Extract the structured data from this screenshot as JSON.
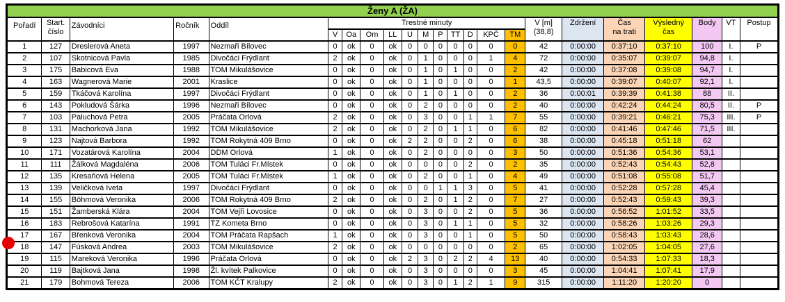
{
  "title": "Ženy A (ŽA)",
  "header": {
    "poradi": "Pořadí",
    "start_line1": "Start.",
    "start_line2": "číslo",
    "zavodnici": "Závodníci",
    "rocnik": "Ročník",
    "oddil": "Oddíl",
    "trestne_minuty": "Trestné minuty",
    "penalty_cols": [
      "V",
      "Oa",
      "Om",
      "LL",
      "U",
      "M",
      "P",
      "TT",
      "D",
      "KPČ",
      "TM"
    ],
    "vm_line1": "V [m]",
    "vm_line2": "(38,8)",
    "zdrzeni": "Zdržení",
    "cas_line1": "Čas",
    "cas_line2": "na trati",
    "vysledny_line1": "Výsledný",
    "vysledny_line2": "čas",
    "body": "Body",
    "vt": "VT",
    "postup": "Postup"
  },
  "rows": [
    [
      "1",
      "127",
      "Dreslerová Aneta",
      "1997",
      "Nezmaři Bílovec",
      "0",
      "ok",
      "0",
      "ok",
      "0",
      "0",
      "0",
      "0",
      "0",
      "0",
      "0",
      "42",
      "0:00:00",
      "0:37:10",
      "0:37:10",
      "100",
      "I.",
      "P"
    ],
    [
      "2",
      "107",
      "Skotnicová Pavla",
      "1985",
      "Divočáci Frýdlant",
      "2",
      "ok",
      "0",
      "ok",
      "0",
      "1",
      "0",
      "0",
      "0",
      "1",
      "4",
      "72",
      "0:00:00",
      "0:35:07",
      "0:39:07",
      "94,8",
      "I.",
      ""
    ],
    [
      "3",
      "175",
      "Babicová Eva",
      "1988",
      "TOM Mikulášovice",
      "0",
      "ok",
      "0",
      "ok",
      "0",
      "1",
      "0",
      "1",
      "0",
      "0",
      "2",
      "42",
      "0:00:00",
      "0:37:08",
      "0:39:08",
      "94,7",
      "I.",
      ""
    ],
    [
      "4",
      "163",
      "Wagnerová Marie",
      "2001",
      "Kraslice",
      "0",
      "ok",
      "0",
      "ok",
      "0",
      "1",
      "0",
      "0",
      "0",
      "0",
      "1",
      "43,5",
      "0:00:00",
      "0:39:07",
      "0:40:07",
      "92,1",
      "I.",
      ""
    ],
    [
      "5",
      "159",
      "Tkáčová Karolína",
      "1997",
      "Divočáci Frýdlant",
      "0",
      "ok",
      "0",
      "ok",
      "0",
      "1",
      "0",
      "1",
      "0",
      "0",
      "2",
      "36",
      "0:00:01",
      "0:39:39",
      "0:41:38",
      "88",
      "II.",
      ""
    ],
    [
      "6",
      "143",
      "Pokludová Šárka",
      "1996",
      "Nezmaři Bílovec",
      "0",
      "ok",
      "0",
      "ok",
      "0",
      "2",
      "0",
      "0",
      "0",
      "0",
      "2",
      "40",
      "0:00:00",
      "0:42:24",
      "0:44:24",
      "80,5",
      "II.",
      "P"
    ],
    [
      "7",
      "103",
      "Paluchová Petra",
      "2005",
      "Práčata Orlová",
      "2",
      "ok",
      "0",
      "ok",
      "0",
      "3",
      "0",
      "0",
      "1",
      "1",
      "7",
      "55",
      "0:00:00",
      "0:39:21",
      "0:46:21",
      "75,3",
      "III.",
      "P"
    ],
    [
      "8",
      "131",
      "Machorková Jana",
      "1992",
      "TOM Mikulášovice",
      "2",
      "ok",
      "0",
      "ok",
      "0",
      "2",
      "0",
      "1",
      "1",
      "0",
      "6",
      "82",
      "0:00:00",
      "0:41:46",
      "0:47:46",
      "71,5",
      "III.",
      ""
    ],
    [
      "9",
      "123",
      "Najtová Barbora",
      "1992",
      "TOM Rokytná 409 Brno",
      "0",
      "ok",
      "0",
      "ok",
      "2",
      "2",
      "0",
      "0",
      "2",
      "0",
      "6",
      "38",
      "0:00:00",
      "0:45:18",
      "0:51:18",
      "62",
      "",
      ""
    ],
    [
      "10",
      "171",
      "Vozatárová Karolína",
      "2004",
      "DDM Orlová",
      "1",
      "ok",
      "0",
      "ok",
      "0",
      "2",
      "0",
      "0",
      "0",
      "0",
      "3",
      "50",
      "0:00:00",
      "0:51:36",
      "0:54:36",
      "53,1",
      "",
      ""
    ],
    [
      "11",
      "111",
      "Žálková Magdaléna",
      "2006",
      "TOM Tuláci Fr.Místek",
      "0",
      "ok",
      "0",
      "ok",
      "0",
      "0",
      "0",
      "0",
      "2",
      "0",
      "2",
      "35",
      "0:00:00",
      "0:52:43",
      "0:54:43",
      "52,8",
      "",
      ""
    ],
    [
      "12",
      "135",
      "Kresaňová Helena",
      "2005",
      "TOM Tuláci Fr.Místek",
      "1",
      "ok",
      "0",
      "ok",
      "0",
      "2",
      "0",
      "0",
      "1",
      "0",
      "4",
      "49",
      "0:00:00",
      "0:51:08",
      "0:55:08",
      "51,7",
      "",
      ""
    ],
    [
      "13",
      "139",
      "Veličková Iveta",
      "1997",
      "Divočáci Frýdlant",
      "0",
      "ok",
      "0",
      "ok",
      "0",
      "0",
      "1",
      "1",
      "3",
      "0",
      "5",
      "41",
      "0:00:00",
      "0:52:28",
      "0:57:28",
      "45,4",
      "",
      ""
    ],
    [
      "14",
      "155",
      "Böhmová Veronika",
      "2006",
      "TOM Rokytná 409 Brno",
      "2",
      "ok",
      "0",
      "ok",
      "0",
      "2",
      "0",
      "1",
      "2",
      "0",
      "7",
      "27",
      "0:00:00",
      "0:52:43",
      "0:59:43",
      "39,3",
      "",
      ""
    ],
    [
      "15",
      "151",
      "Žamberská Klára",
      "2004",
      "TOM Vejři Lovosice",
      "0",
      "ok",
      "0",
      "ok",
      "0",
      "3",
      "0",
      "0",
      "2",
      "0",
      "5",
      "36",
      "0:00:00",
      "0:56:52",
      "1:01:52",
      "33,5",
      "",
      ""
    ],
    [
      "16",
      "183",
      "Rebrošová Katarína",
      "1991",
      "TZ Kometa Brno",
      "0",
      "ok",
      "0",
      "ok",
      "0",
      "3",
      "0",
      "1",
      "1",
      "0",
      "5",
      "32",
      "0:00:00",
      "0:58:26",
      "1:03:26",
      "29,3",
      "",
      ""
    ],
    [
      "17",
      "167",
      "Břenková Veronika",
      "2004",
      "TOM Práčata Rapšach",
      "1",
      "ok",
      "0",
      "ok",
      "0",
      "3",
      "0",
      "0",
      "1",
      "0",
      "5",
      "50",
      "0:00:00",
      "0:58:43",
      "1:03:43",
      "28,6",
      "",
      ""
    ],
    [
      "18",
      "147",
      "Fúsková Andrea",
      "2003",
      "TOM Mikulášovice",
      "2",
      "ok",
      "0",
      "ok",
      "0",
      "0",
      "0",
      "0",
      "0",
      "0",
      "2",
      "65",
      "0:00:00",
      "1:02:05",
      "1:04:05",
      "27,6",
      "",
      ""
    ],
    [
      "19",
      "115",
      "Mareková Veronika",
      "1996",
      "Práčata Orlová",
      "0",
      "ok",
      "0",
      "ok",
      "2",
      "3",
      "0",
      "2",
      "2",
      "4",
      "13",
      "40",
      "0:00:00",
      "0:54:33",
      "1:07:33",
      "18,3",
      "",
      ""
    ],
    [
      "20",
      "119",
      "Bajtková Jana",
      "1998",
      "Žl. kvítek Palkovice",
      "0",
      "ok",
      "0",
      "ok",
      "0",
      "3",
      "0",
      "0",
      "0",
      "0",
      "3",
      "45",
      "0:00:00",
      "1:04:41",
      "1:07:41",
      "17,9",
      "",
      ""
    ],
    [
      "21",
      "179",
      "Bohmová Tereza",
      "2006",
      "TOM KČT Kralupy",
      "2",
      "ok",
      "0",
      "ok",
      "0",
      "3",
      "0",
      "1",
      "2",
      "1",
      "9",
      "315",
      "0:00:00",
      "1:11:20",
      "1:20:20",
      "0",
      "",
      ""
    ]
  ],
  "marker": {
    "shape": "red-dot",
    "attached_row_rank": "17",
    "color": "#E80000"
  },
  "colors": {
    "title_bg": "#92D050",
    "tm_bg": "#FFC000",
    "delay_bg": "#DCE6F1",
    "track_time_bg": "#FBD5B5",
    "final_time_bg": "#FFFF00",
    "points_bg": "#F3C9F3",
    "border": "#000000"
  }
}
